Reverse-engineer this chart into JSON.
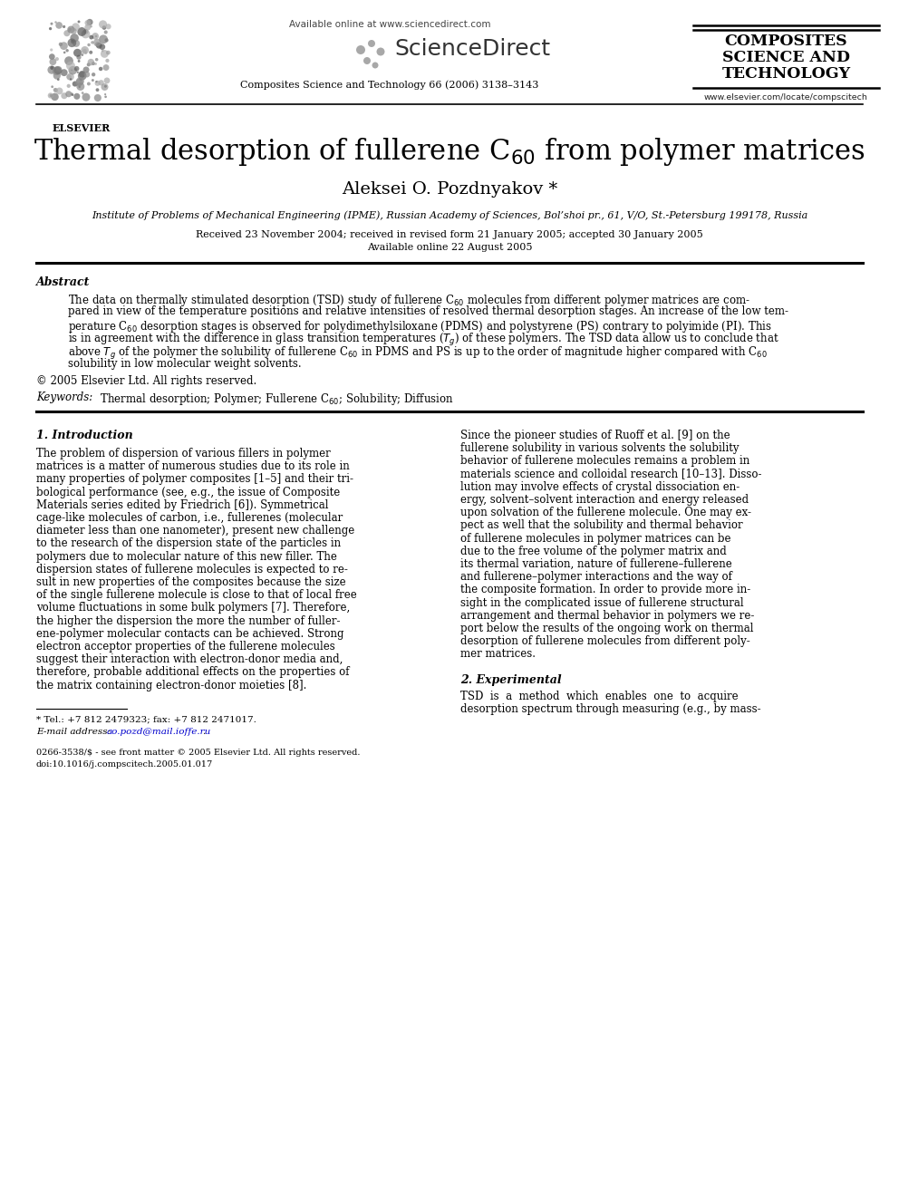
{
  "bg_color": "#ffffff",
  "sd_available": "Available online at www.sciencedirect.com",
  "sciencedirect": "ScienceDirect",
  "journal_header": "Composites Science and Technology 66 (2006) 3138–3143",
  "composites_line1": "COMPOSITES",
  "composites_line2": "SCIENCE AND",
  "composites_line3": "TECHNOLOGY",
  "elsevier_text": "ELSEVIER",
  "website": "www.elsevier.com/locate/compscitech",
  "title": "Thermal desorption of fullerene C$_{60}$ from polymer matrices",
  "author": "Aleksei O. Pozdnyakov *",
  "affiliation": "Institute of Problems of Mechanical Engineering (IPME), Russian Academy of Sciences, Bol’shoi pr., 61, V/O, St.-Petersburg 199178, Russia",
  "received": "Received 23 November 2004; received in revised form 21 January 2005; accepted 30 January 2005",
  "available_online": "Available online 22 August 2005",
  "abstract_heading": "Abstract",
  "copyright": "© 2005 Elsevier Ltd. All rights reserved.",
  "keywords_label": "Keywords:",
  "keywords_text": "  Thermal desorption; Polymer; Fullerene C$_{60}$; Solubility; Diffusion",
  "section1_heading": "1. Introduction",
  "section2_heading": "2. Experimental",
  "footnote_line1": "* Tel.: +7 812 2479323; fax: +7 812 2471017.",
  "footnote_line2": "E-mail address: ao.pozd@mail.ioffe.ru.",
  "footnote_email_part": "ao.pozd@mail.ioffe.ru",
  "footer_issn": "0266-3538/$ - see front matter © 2005 Elsevier Ltd. All rights reserved.",
  "footer_doi": "doi:10.1016/j.compscitech.2005.01.017"
}
